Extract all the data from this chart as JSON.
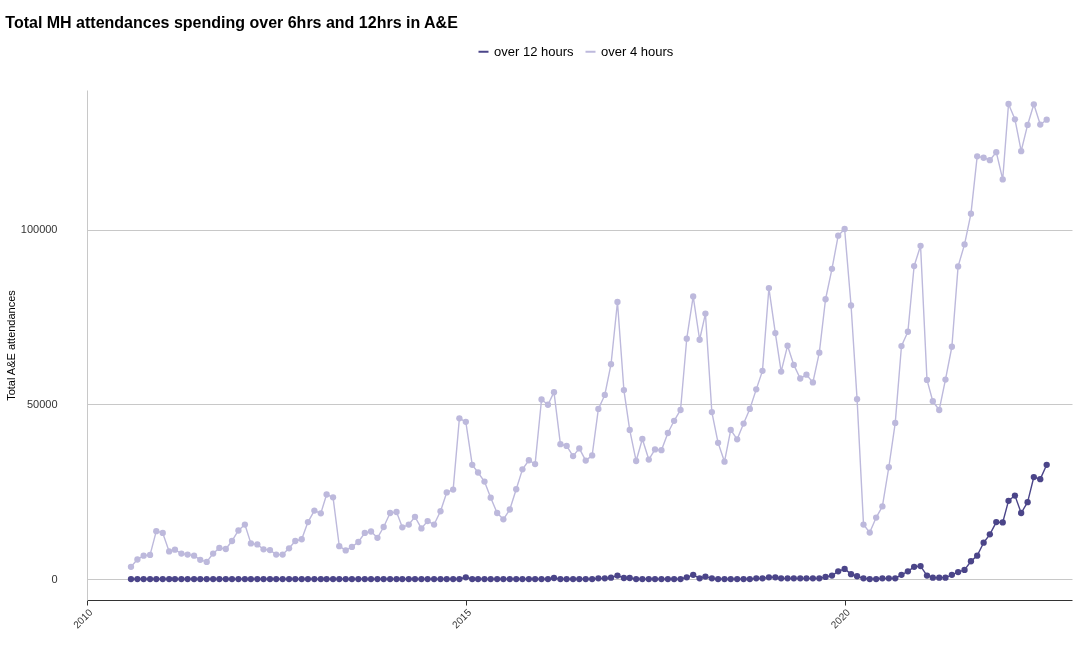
{
  "chart_data": {
    "type": "line",
    "title": "Total MH attendances spending over 6hrs and 12hrs in A&E",
    "ylabel": "Total A&E attendances",
    "x": [
      "2010-08",
      "2010-09",
      "2010-10",
      "2010-11",
      "2010-12",
      "2011-01",
      "2011-02",
      "2011-03",
      "2011-04",
      "2011-05",
      "2011-06",
      "2011-07",
      "2011-08",
      "2011-09",
      "2011-10",
      "2011-11",
      "2011-12",
      "2012-01",
      "2012-02",
      "2012-03",
      "2012-04",
      "2012-05",
      "2012-06",
      "2012-07",
      "2012-08",
      "2012-09",
      "2012-10",
      "2012-11",
      "2012-12",
      "2013-01",
      "2013-02",
      "2013-03",
      "2013-04",
      "2013-05",
      "2013-06",
      "2013-07",
      "2013-08",
      "2013-09",
      "2013-10",
      "2013-11",
      "2013-12",
      "2014-01",
      "2014-02",
      "2014-03",
      "2014-04",
      "2014-05",
      "2014-06",
      "2014-07",
      "2014-08",
      "2014-09",
      "2014-10",
      "2014-11",
      "2014-12",
      "2015-01",
      "2015-02",
      "2015-03",
      "2015-04",
      "2015-05",
      "2015-06",
      "2015-07",
      "2015-08",
      "2015-09",
      "2015-10",
      "2015-11",
      "2015-12",
      "2016-01",
      "2016-02",
      "2016-03",
      "2016-04",
      "2016-05",
      "2016-06",
      "2016-07",
      "2016-08",
      "2016-09",
      "2016-10",
      "2016-11",
      "2016-12",
      "2017-01",
      "2017-02",
      "2017-03",
      "2017-04",
      "2017-05",
      "2017-06",
      "2017-07",
      "2017-08",
      "2017-09",
      "2017-10",
      "2017-11",
      "2017-12",
      "2018-01",
      "2018-02",
      "2018-03",
      "2018-04",
      "2018-05",
      "2018-06",
      "2018-07",
      "2018-08",
      "2018-09",
      "2018-10",
      "2018-11",
      "2018-12",
      "2019-01",
      "2019-02",
      "2019-03",
      "2019-04",
      "2019-05",
      "2019-06",
      "2019-07",
      "2019-08",
      "2019-09",
      "2019-10",
      "2019-11",
      "2019-12",
      "2020-01",
      "2020-02",
      "2020-03",
      "2020-04",
      "2020-05",
      "2020-06",
      "2020-07",
      "2020-08",
      "2020-09",
      "2020-10",
      "2020-11",
      "2020-12",
      "2021-01",
      "2021-02",
      "2021-03",
      "2021-04",
      "2021-05",
      "2021-06",
      "2021-07",
      "2021-08",
      "2021-09",
      "2021-10",
      "2021-11",
      "2021-12",
      "2022-01",
      "2022-02",
      "2022-03",
      "2022-04",
      "2022-05",
      "2022-06",
      "2022-07",
      "2022-08",
      "2022-09"
    ],
    "series": [
      {
        "name": "over 12 hours",
        "color": "#4b4589",
        "values": [
          0,
          0,
          0,
          0,
          0,
          0,
          0,
          0,
          0,
          0,
          0,
          0,
          0,
          0,
          0,
          0,
          0,
          0,
          0,
          0,
          0,
          0,
          0,
          0,
          0,
          0,
          0,
          0,
          0,
          0,
          0,
          0,
          0,
          0,
          0,
          0,
          0,
          0,
          0,
          0,
          0,
          0,
          0,
          0,
          0,
          0,
          0,
          0,
          0,
          0,
          0,
          0,
          0,
          500,
          0,
          0,
          0,
          0,
          0,
          0,
          0,
          0,
          0,
          0,
          0,
          0,
          0,
          300,
          0,
          0,
          0,
          0,
          0,
          0,
          200,
          200,
          400,
          1000,
          300,
          300,
          0,
          0,
          0,
          0,
          0,
          0,
          0,
          0,
          500,
          1200,
          200,
          700,
          200,
          0,
          0,
          0,
          0,
          0,
          0,
          200,
          200,
          500,
          500,
          200,
          200,
          200,
          200,
          200,
          200,
          200,
          600,
          1000,
          2200,
          2900,
          1400,
          800,
          200,
          0,
          0,
          200,
          200,
          200,
          1200,
          2200,
          3500,
          3700,
          1000,
          400,
          400,
          400,
          1200,
          2000,
          2600,
          5100,
          6700,
          10400,
          12800,
          16300,
          16200,
          22400,
          23900,
          18900,
          22000,
          29200,
          28600,
          32700
        ]
      },
      {
        "name": "over 4 hours",
        "color": "#bdb9dc",
        "values": [
          3500,
          5600,
          6700,
          6900,
          13700,
          13200,
          7900,
          8400,
          7300,
          7000,
          6700,
          5500,
          4900,
          7300,
          8900,
          8600,
          10900,
          13900,
          15600,
          10200,
          9900,
          8500,
          8300,
          7000,
          7000,
          8800,
          10900,
          11400,
          16300,
          19600,
          18800,
          24200,
          23400,
          9400,
          8200,
          9200,
          10600,
          13200,
          13600,
          11800,
          14900,
          18900,
          19200,
          14800,
          15600,
          17800,
          14500,
          16600,
          15600,
          19400,
          24800,
          25600,
          46000,
          45000,
          32700,
          30500,
          27900,
          23300,
          18900,
          17100,
          19900,
          25700,
          31400,
          34000,
          32900,
          51400,
          49900,
          53500,
          38600,
          38100,
          35200,
          37400,
          33900,
          35400,
          48700,
          52700,
          61500,
          79300,
          54100,
          42700,
          33800,
          40100,
          34200,
          37100,
          36900,
          41800,
          45300,
          48400,
          68800,
          80900,
          68500,
          76000,
          47800,
          39000,
          33600,
          42700,
          40000,
          44500,
          48700,
          54300,
          59600,
          83300,
          70400,
          59400,
          66800,
          61300,
          57400,
          58500,
          56300,
          64800,
          80100,
          88800,
          98300,
          100200,
          78300,
          51500,
          15600,
          13300,
          17600,
          20800,
          32000,
          44700,
          66700,
          70800,
          89600,
          95400,
          57000,
          50900,
          48400,
          57100,
          66500,
          89500,
          95800,
          104600,
          121000,
          120600,
          119900,
          122200,
          114400,
          136000,
          131600,
          122500,
          130000,
          135900,
          130100,
          131500
        ]
      }
    ],
    "xlim": [
      "2010",
      "2023"
    ],
    "xticks": [
      "2010",
      "2015",
      "2020"
    ],
    "ylim": [
      -6000,
      140000
    ],
    "yticks": [
      0,
      50000,
      100000
    ],
    "grid": "y",
    "legend": "top",
    "marker": "circle",
    "line_style": "solid"
  }
}
